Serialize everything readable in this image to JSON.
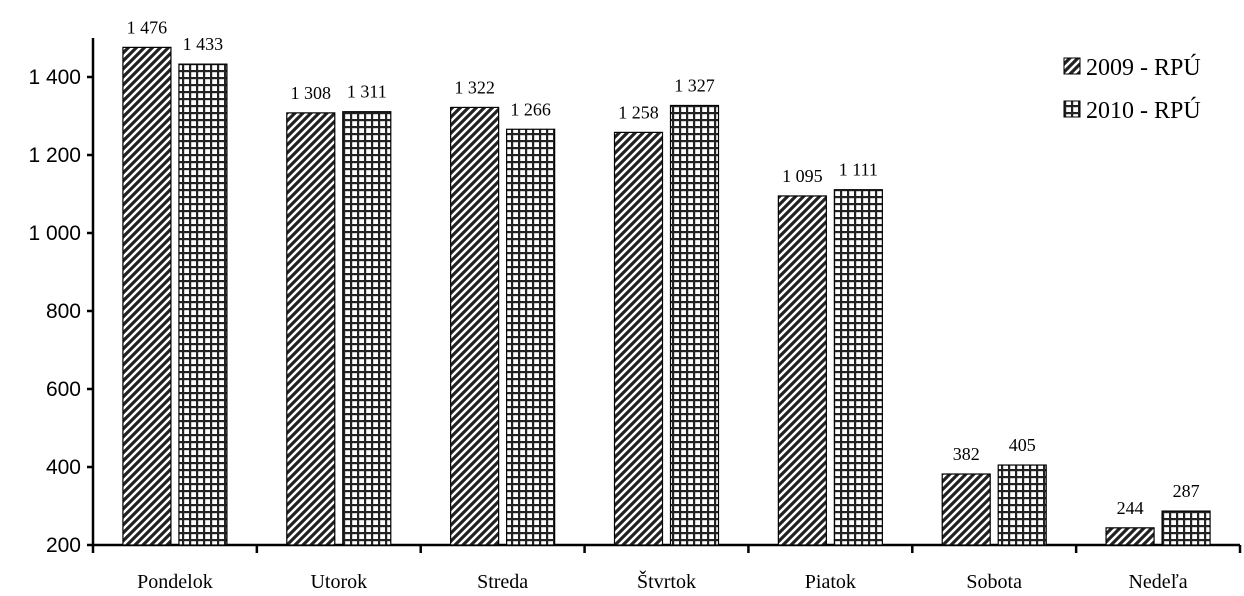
{
  "chart_data": {
    "type": "bar",
    "title": "",
    "xlabel": "",
    "ylabel": "",
    "categories": [
      "Pondelok",
      "Utorok",
      "Streda",
      "Štvrtok",
      "Piatok",
      "Sobota",
      "Nedeľa"
    ],
    "series": [
      {
        "name": "2009 - RPÚ",
        "values": [
          1476,
          1308,
          1322,
          1258,
          1095,
          382,
          244
        ],
        "labels": [
          "1 476",
          "1 308",
          "1 322",
          "1 258",
          "1 095",
          "382",
          "244"
        ],
        "pattern": "diagonal-stripes"
      },
      {
        "name": "2010 - RPÚ",
        "values": [
          1433,
          1311,
          1266,
          1327,
          1111,
          405,
          287
        ],
        "labels": [
          "1 433",
          "1 311",
          "1 266",
          "1 327",
          "1 111",
          "405",
          "287"
        ],
        "pattern": "grid"
      }
    ],
    "ylim": [
      200,
      1500
    ],
    "yticks": [
      200,
      400,
      600,
      800,
      1000,
      1200,
      1400
    ],
    "ytick_labels": [
      "200",
      "400",
      "600",
      "800",
      "1 000",
      "1 200",
      "1 400"
    ],
    "grid": false,
    "legend_position": "top-right",
    "colors": {
      "pattern_dark": "#222222",
      "pattern_light": "#ffffff",
      "axis": "#000000"
    }
  }
}
